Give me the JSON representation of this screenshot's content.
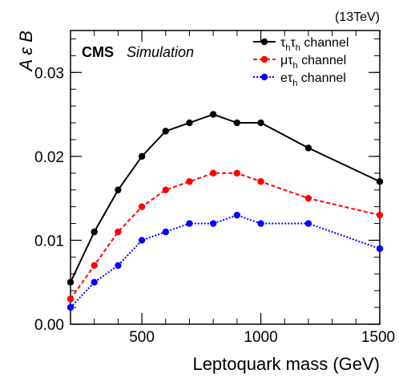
{
  "header": {
    "energy_label": "(13TeV)",
    "cms_label": "CMS",
    "simulation_label": "Simulation"
  },
  "chart_data": {
    "type": "line",
    "title": "",
    "xlabel": "Leptoquark mass (GeV)",
    "ylabel": "A ε B",
    "xlim": [
      200,
      1500
    ],
    "ylim": [
      0,
      0.035
    ],
    "xticks": [
      500,
      1000,
      1500
    ],
    "xtick_labels": [
      "500",
      "1000",
      "1500"
    ],
    "yticks": [
      0,
      0.01,
      0.02,
      0.03
    ],
    "ytick_labels": [
      "0.00",
      "0.01",
      "0.02",
      "0.03"
    ],
    "grid": false,
    "legend_position": "top-right",
    "x": [
      200,
      300,
      400,
      500,
      600,
      700,
      800,
      900,
      1000,
      1200,
      1500
    ],
    "series": [
      {
        "name_main": "τ",
        "name_sub": "h",
        "name_main2": "τ",
        "name_sub2": "h",
        "name_rest": " channel",
        "color": "#000000",
        "line_style": "solid",
        "values": [
          0.005,
          0.011,
          0.016,
          0.02,
          0.023,
          0.024,
          0.025,
          0.024,
          0.024,
          0.021,
          0.017
        ]
      },
      {
        "name_main": "μ",
        "name_sub": "",
        "name_main2": "τ",
        "name_sub2": "h",
        "name_rest": " channel",
        "color": "#ff0000",
        "line_style": "dashed",
        "values": [
          0.003,
          0.007,
          0.011,
          0.014,
          0.016,
          0.017,
          0.018,
          0.018,
          0.017,
          0.015,
          0.013
        ]
      },
      {
        "name_main": "e",
        "name_sub": "",
        "name_main2": "τ",
        "name_sub2": "h",
        "name_rest": " channel",
        "color": "#0000ff",
        "line_style": "dotted",
        "values": [
          0.002,
          0.005,
          0.007,
          0.01,
          0.011,
          0.012,
          0.012,
          0.013,
          0.012,
          0.012,
          0.009
        ]
      }
    ]
  }
}
